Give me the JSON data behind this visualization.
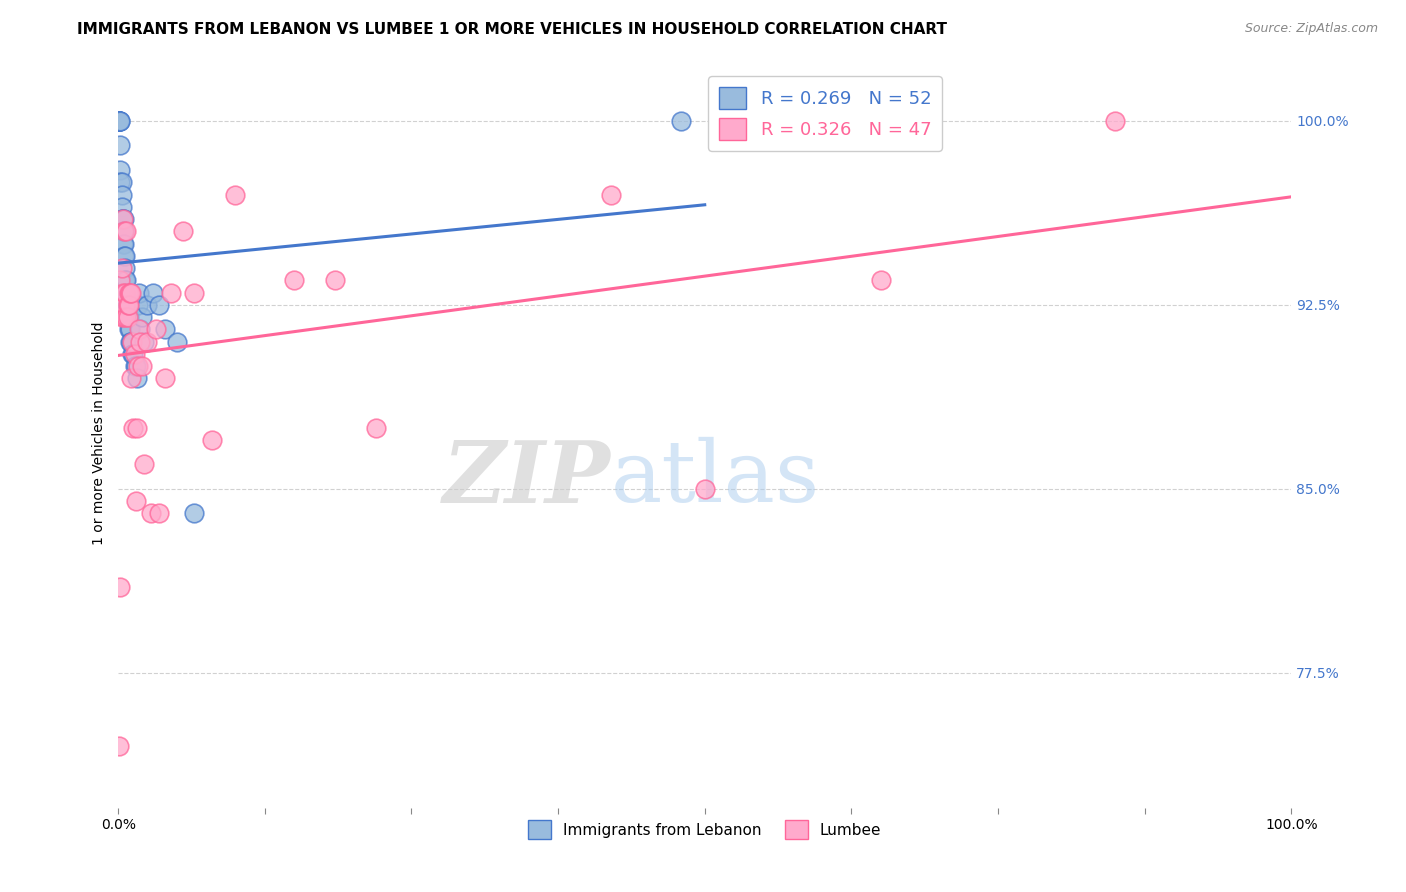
{
  "title": "IMMIGRANTS FROM LEBANON VS LUMBEE 1 OR MORE VEHICLES IN HOUSEHOLD CORRELATION CHART",
  "source": "Source: ZipAtlas.com",
  "ylabel": "1 or more Vehicles in Household",
  "xlim": [
    0.0,
    1.0
  ],
  "ylim": [
    0.72,
    1.025
  ],
  "yticks": [
    0.775,
    0.85,
    0.925,
    1.0
  ],
  "ytick_labels": [
    "77.5%",
    "85.0%",
    "92.5%",
    "100.0%"
  ],
  "xticks": [
    0.0,
    0.125,
    0.25,
    0.375,
    0.5,
    0.625,
    0.75,
    0.875,
    1.0
  ],
  "xtick_labels": [
    "0.0%",
    "",
    "",
    "",
    "",
    "",
    "",
    "",
    "100.0%"
  ],
  "color_blue": "#99BBDD",
  "color_pink": "#FFAACC",
  "line_color_blue": "#4477CC",
  "line_color_pink": "#FF6699",
  "legend_r1": "R = 0.269",
  "legend_n1": "N = 52",
  "legend_r2": "R = 0.326",
  "legend_n2": "N = 47",
  "blue_x": [
    0.001,
    0.001,
    0.001,
    0.001,
    0.001,
    0.002,
    0.002,
    0.002,
    0.002,
    0.002,
    0.003,
    0.003,
    0.003,
    0.003,
    0.004,
    0.004,
    0.004,
    0.004,
    0.005,
    0.005,
    0.005,
    0.005,
    0.006,
    0.006,
    0.006,
    0.007,
    0.007,
    0.007,
    0.008,
    0.008,
    0.009,
    0.009,
    0.01,
    0.01,
    0.011,
    0.012,
    0.013,
    0.014,
    0.015,
    0.016,
    0.017,
    0.018,
    0.019,
    0.02,
    0.022,
    0.025,
    0.03,
    0.035,
    0.04,
    0.05,
    0.065,
    0.48
  ],
  "blue_y": [
    1.0,
    1.0,
    1.0,
    1.0,
    1.0,
    1.0,
    1.0,
    0.99,
    0.98,
    0.975,
    0.975,
    0.97,
    0.965,
    0.96,
    0.96,
    0.96,
    0.955,
    0.95,
    0.96,
    0.955,
    0.95,
    0.945,
    0.945,
    0.94,
    0.935,
    0.935,
    0.93,
    0.925,
    0.93,
    0.925,
    0.92,
    0.915,
    0.915,
    0.91,
    0.91,
    0.905,
    0.905,
    0.9,
    0.9,
    0.895,
    0.925,
    0.93,
    0.915,
    0.92,
    0.91,
    0.925,
    0.93,
    0.925,
    0.915,
    0.91,
    0.84,
    1.0
  ],
  "pink_x": [
    0.001,
    0.002,
    0.002,
    0.003,
    0.003,
    0.004,
    0.004,
    0.005,
    0.005,
    0.006,
    0.006,
    0.007,
    0.007,
    0.008,
    0.008,
    0.009,
    0.009,
    0.01,
    0.011,
    0.011,
    0.012,
    0.013,
    0.014,
    0.015,
    0.016,
    0.017,
    0.018,
    0.019,
    0.02,
    0.022,
    0.025,
    0.028,
    0.032,
    0.035,
    0.04,
    0.045,
    0.055,
    0.065,
    0.08,
    0.1,
    0.15,
    0.185,
    0.22,
    0.42,
    0.5,
    0.65,
    0.85
  ],
  "pink_y": [
    0.745,
    0.81,
    0.935,
    0.92,
    0.94,
    0.96,
    0.93,
    0.955,
    0.92,
    0.925,
    0.93,
    0.955,
    0.92,
    0.92,
    0.925,
    0.93,
    0.925,
    0.93,
    0.93,
    0.895,
    0.91,
    0.875,
    0.905,
    0.845,
    0.875,
    0.9,
    0.915,
    0.91,
    0.9,
    0.86,
    0.91,
    0.84,
    0.915,
    0.84,
    0.895,
    0.93,
    0.955,
    0.93,
    0.87,
    0.97,
    0.935,
    0.935,
    0.875,
    0.97,
    0.85,
    0.935,
    1.0
  ],
  "watermark_zip": "ZIP",
  "watermark_atlas": "atlas",
  "title_fontsize": 11,
  "source_fontsize": 9,
  "label_fontsize": 10,
  "tick_fontsize": 10,
  "legend_fontsize": 13
}
